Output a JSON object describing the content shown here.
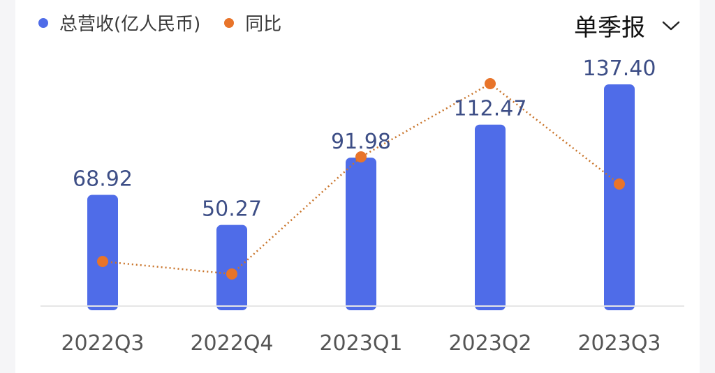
{
  "legend": {
    "revenue_label": "总营收(亿人民币)",
    "yoy_label": "同比"
  },
  "period_selector": {
    "value": "单季报"
  },
  "colors": {
    "bar": "#4f6ce8",
    "line": "#e8742a",
    "axis": "#e6e6e6",
    "value_label": "#3d4e86",
    "tick": "#555555"
  },
  "chart_data": {
    "type": "bar",
    "categories": [
      "2022Q3",
      "2022Q4",
      "2023Q1",
      "2023Q2",
      "2023Q3"
    ],
    "series": [
      {
        "name": "总营收(亿人民币)",
        "type": "bar",
        "values": [
          68.92,
          50.27,
          91.98,
          112.47,
          137.4
        ],
        "labels": [
          "68.92",
          "50.27",
          "91.98",
          "112.47",
          "137.40"
        ]
      },
      {
        "name": "同比",
        "type": "line",
        "style": "dotted",
        "relative_level": [
          0.15,
          0.09,
          0.65,
          1.0,
          0.52
        ]
      }
    ],
    "ylim": [
      0,
      137.4
    ],
    "grid": false,
    "legend_position": "top-left"
  }
}
